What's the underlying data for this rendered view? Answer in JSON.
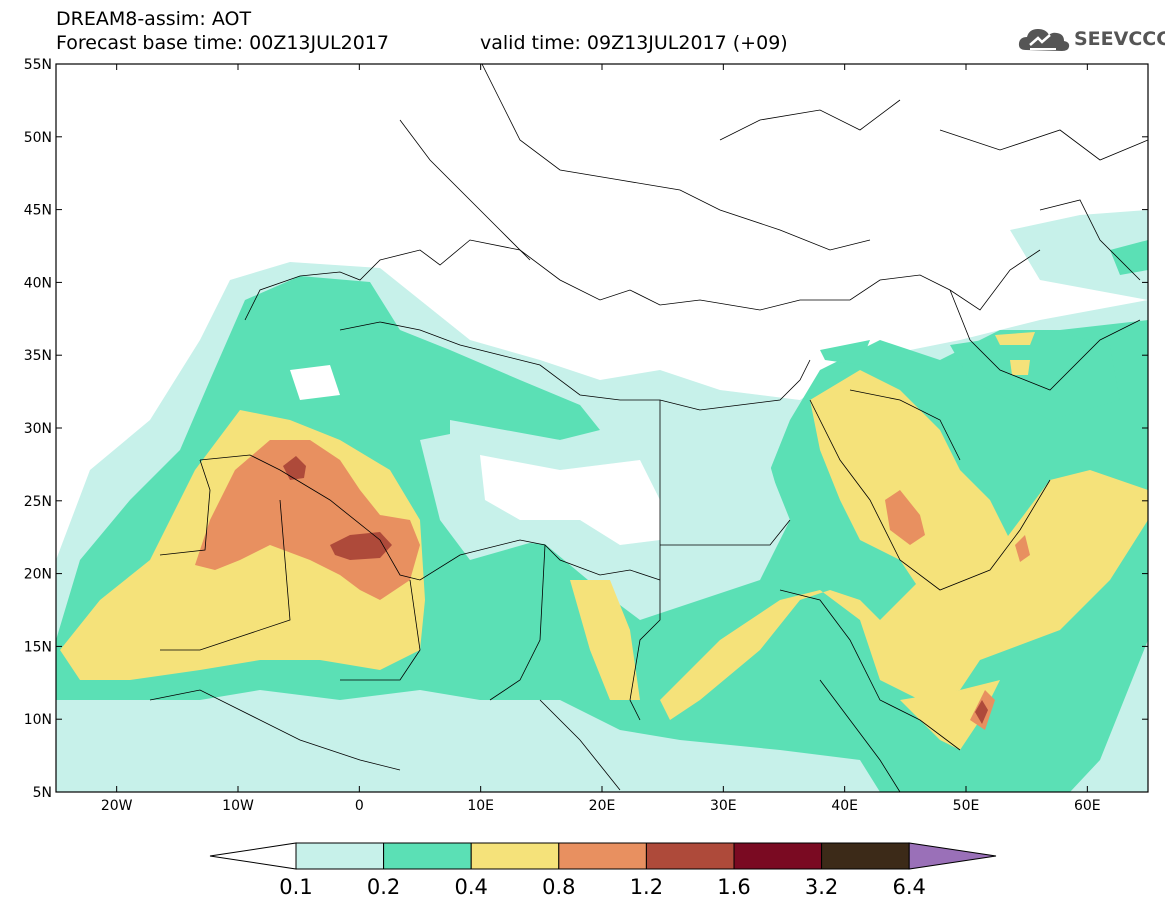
{
  "header": {
    "title_line1": "DREAM8-assim: AOT",
    "base_time": "Forecast base time: 00Z13JUL2017",
    "valid_time": "valid time: 09Z13JUL2017 (+09)",
    "logo_text": "SEEVCCC"
  },
  "map": {
    "lon_range": [
      -25,
      65
    ],
    "lat_range": [
      5,
      55
    ],
    "lat_ticks": [
      "55N",
      "50N",
      "45N",
      "40N",
      "35N",
      "30N",
      "25N",
      "20N",
      "15N",
      "10N",
      "5N"
    ],
    "lon_ticks": [
      "20W",
      "10W",
      "0",
      "10E",
      "20E",
      "30E",
      "40E",
      "50E",
      "60E"
    ]
  },
  "colorbar": {
    "labels": [
      "0.1",
      "0.2",
      "0.4",
      "0.8",
      "1.2",
      "1.6",
      "3.2",
      "6.4"
    ],
    "colors": [
      "#ffffff",
      "#c7f1ea",
      "#5be0b5",
      "#f5e27a",
      "#e89060",
      "#ae4a3a",
      "#7a0a22",
      "#3c2a18",
      "#9a70b8"
    ]
  }
}
